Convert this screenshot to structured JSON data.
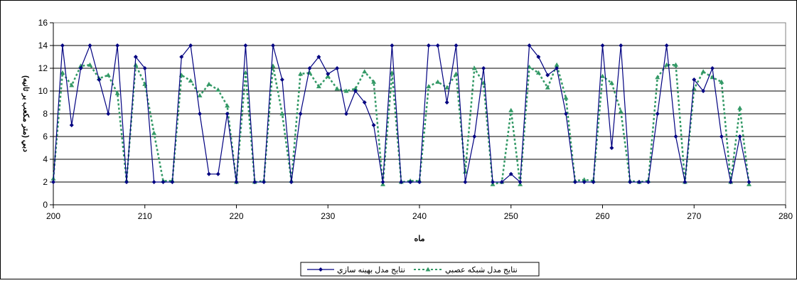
{
  "chart_data": {
    "type": "line",
    "title": "",
    "xlabel": "ماه",
    "ylabel": "دبي (متر مکعب بر ثانيه)",
    "xlim": [
      200,
      280
    ],
    "ylim": [
      0,
      16
    ],
    "x_ticks": [
      200,
      210,
      220,
      230,
      240,
      250,
      260,
      270,
      280
    ],
    "y_ticks": [
      0,
      2,
      4,
      6,
      8,
      10,
      12,
      14,
      16
    ],
    "grid": "horizontal",
    "legend_position": "bottom",
    "x": [
      200,
      201,
      202,
      203,
      204,
      205,
      206,
      207,
      208,
      209,
      210,
      211,
      212,
      213,
      214,
      215,
      216,
      217,
      218,
      219,
      220,
      221,
      222,
      223,
      224,
      225,
      226,
      227,
      228,
      229,
      230,
      231,
      232,
      233,
      234,
      235,
      236,
      237,
      238,
      239,
      240,
      241,
      242,
      243,
      244,
      245,
      246,
      247,
      248,
      249,
      250,
      251,
      252,
      253,
      254,
      255,
      256,
      257,
      258,
      259,
      260,
      261,
      262,
      263,
      264,
      265,
      266,
      267,
      268,
      269,
      270,
      271,
      272,
      273,
      274,
      275,
      276
    ],
    "series": [
      {
        "name": "نتايج مدل بهينه سازي",
        "color": "#000080",
        "style": "solid",
        "marker": "diamond",
        "values": [
          2,
          14,
          7,
          12,
          14,
          11,
          8,
          14,
          2,
          13,
          12,
          2,
          2,
          2,
          13,
          14,
          8,
          2.7,
          2.7,
          8,
          2,
          14,
          2,
          2,
          14,
          11,
          2,
          8,
          12,
          13,
          11.5,
          12,
          8,
          10,
          9,
          7,
          2,
          14,
          2,
          2,
          2,
          14,
          14,
          9,
          14,
          2,
          6,
          12,
          2,
          2,
          2.7,
          2,
          14,
          13,
          11.4,
          12,
          8,
          2,
          2,
          2,
          14,
          5,
          14,
          2,
          2,
          2,
          8,
          14,
          6,
          2,
          11,
          10,
          12,
          6,
          2,
          6,
          2
        ]
      },
      {
        "name": "نتايج مدل شبکه عصبي",
        "color": "#339966",
        "style": "dashed",
        "marker": "triangle",
        "values": [
          2.3,
          11.6,
          10.5,
          12.2,
          12.3,
          11.1,
          11.4,
          9.8,
          2.1,
          12.3,
          10.6,
          6.3,
          2.1,
          2.1,
          11.4,
          10.9,
          9.6,
          10.6,
          10.1,
          8.7,
          2,
          11.6,
          2,
          2.1,
          12.2,
          8,
          2.1,
          11.5,
          11.6,
          10.4,
          11.3,
          10.2,
          10,
          10.2,
          11.7,
          10.8,
          1.8,
          11.6,
          2,
          2.1,
          2.1,
          10.4,
          10.8,
          10.3,
          11.5,
          2.9,
          12,
          10.7,
          1.8,
          2,
          8.3,
          1.8,
          12.1,
          11.6,
          10.3,
          12.3,
          9.4,
          2.1,
          2.2,
          2.1,
          11.3,
          10.7,
          8.2,
          2.1,
          2,
          2.1,
          11.2,
          12.3,
          12.3,
          2,
          10.2,
          11.7,
          11.2,
          10.8,
          2,
          8.5,
          1.8
        ]
      }
    ]
  }
}
